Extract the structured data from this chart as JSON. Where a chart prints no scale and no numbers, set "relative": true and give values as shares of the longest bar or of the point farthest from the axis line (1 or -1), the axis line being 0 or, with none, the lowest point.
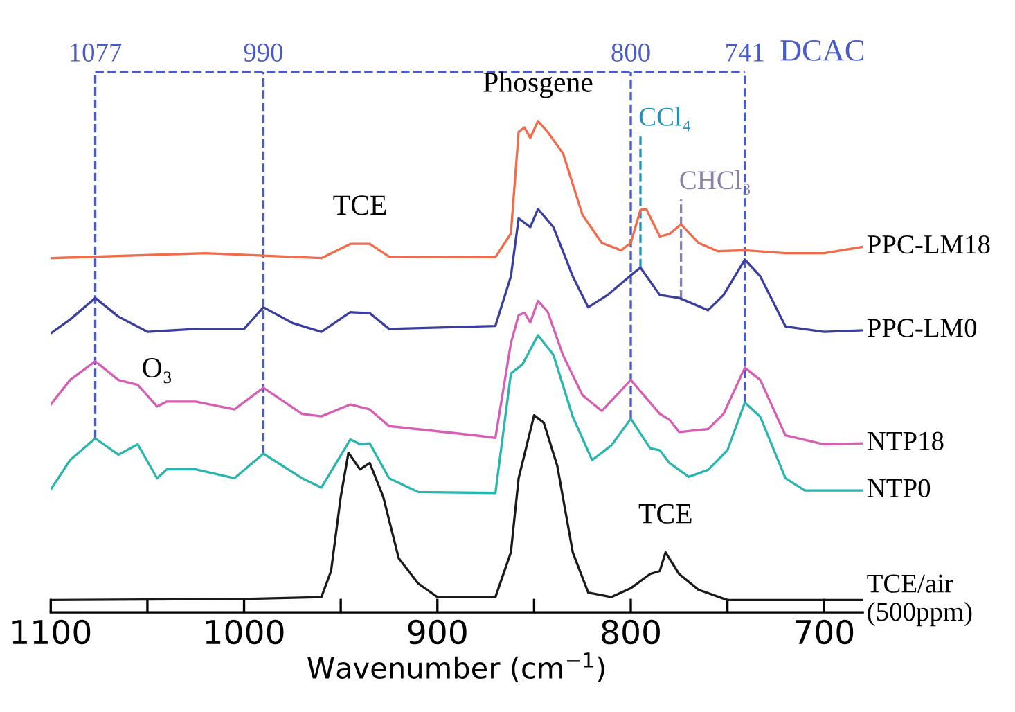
{
  "chart_data": {
    "type": "line",
    "relative": true,
    "xlabel": "Wavenumber (cm$^{−1}$)",
    "xlim": [
      1100,
      680
    ],
    "xticks": [
      1100,
      {
        "value": 1050,
        "label": null
      },
      1000,
      {
        "value": 950,
        "label": null
      },
      900,
      {
        "value": 850,
        "label": null
      },
      800,
      {
        "value": 750,
        "label": null
      },
      700
    ],
    "legend": false,
    "grid": false,
    "marker": "none",
    "line_style": "solid",
    "series": [
      {
        "name": "PPC-LM18",
        "color": "#f26b4a",
        "x": [
          1100,
          1020,
          960,
          945,
          935,
          925,
          870,
          862,
          858,
          855,
          852,
          848,
          843,
          835,
          825,
          815,
          805,
          800,
          795,
          792,
          785,
          780,
          774,
          765,
          755,
          741,
          720,
          700,
          680
        ],
        "values": [
          0.721,
          0.731,
          0.721,
          0.75,
          0.75,
          0.724,
          0.723,
          0.771,
          0.978,
          0.987,
          0.966,
          1.0,
          0.978,
          0.934,
          0.809,
          0.752,
          0.737,
          0.752,
          0.819,
          0.821,
          0.765,
          0.77,
          0.79,
          0.752,
          0.735,
          0.737,
          0.731,
          0.731,
          0.744
        ]
      },
      {
        "name": "PPC-LM0",
        "color": "#3a3f9e",
        "x": [
          1100,
          1090,
          1077,
          1065,
          1050,
          1025,
          1000,
          990,
          975,
          960,
          945,
          935,
          925,
          870,
          862,
          858,
          852,
          848,
          840,
          830,
          822,
          812,
          800,
          795,
          785,
          775,
          760,
          752,
          741,
          733,
          720,
          700,
          680
        ],
        "values": [
          0.568,
          0.596,
          0.64,
          0.602,
          0.571,
          0.577,
          0.577,
          0.621,
          0.589,
          0.571,
          0.611,
          0.609,
          0.577,
          0.583,
          0.684,
          0.802,
          0.784,
          0.821,
          0.784,
          0.684,
          0.621,
          0.646,
          0.686,
          0.702,
          0.646,
          0.64,
          0.615,
          0.646,
          0.718,
          0.684,
          0.582,
          0.571,
          0.574
        ]
      },
      {
        "name": "NTP18",
        "color": "#d65fb4",
        "x": [
          1100,
          1090,
          1077,
          1065,
          1055,
          1045,
          1040,
          1025,
          1005,
          990,
          970,
          960,
          945,
          935,
          925,
          880,
          870,
          862,
          858,
          855,
          852,
          848,
          843,
          835,
          825,
          815,
          800,
          785,
          780,
          775,
          760,
          752,
          741,
          733,
          720,
          700,
          680
        ],
        "values": [
          0.423,
          0.473,
          0.511,
          0.473,
          0.463,
          0.419,
          0.429,
          0.429,
          0.413,
          0.457,
          0.404,
          0.399,
          0.423,
          0.413,
          0.379,
          0.36,
          0.355,
          0.548,
          0.605,
          0.61,
          0.59,
          0.634,
          0.612,
          0.523,
          0.442,
          0.41,
          0.473,
          0.404,
          0.392,
          0.367,
          0.373,
          0.404,
          0.498,
          0.473,
          0.36,
          0.342,
          0.344
        ]
      },
      {
        "name": "NTP0",
        "color": "#2bb5ad",
        "x": [
          1100,
          1090,
          1077,
          1065,
          1055,
          1045,
          1040,
          1025,
          1005,
          990,
          970,
          960,
          945,
          940,
          935,
          925,
          910,
          870,
          862,
          856,
          848,
          840,
          830,
          820,
          810,
          800,
          790,
          785,
          780,
          770,
          760,
          750,
          741,
          733,
          720,
          710,
          680
        ],
        "values": [
          0.25,
          0.31,
          0.354,
          0.321,
          0.342,
          0.273,
          0.291,
          0.291,
          0.273,
          0.323,
          0.273,
          0.254,
          0.352,
          0.342,
          0.344,
          0.273,
          0.245,
          0.243,
          0.486,
          0.505,
          0.564,
          0.524,
          0.398,
          0.31,
          0.34,
          0.394,
          0.334,
          0.33,
          0.304,
          0.276,
          0.29,
          0.33,
          0.427,
          0.398,
          0.273,
          0.248,
          0.248
        ]
      },
      {
        "name": "TCE/air\n(500ppm)",
        "color": "#1a1a1a",
        "x": [
          1100,
          1000,
          960,
          955,
          950,
          946,
          940,
          935,
          928,
          920,
          910,
          900,
          870,
          862,
          858,
          850,
          845,
          838,
          830,
          822,
          810,
          800,
          790,
          785,
          782,
          775,
          765,
          750,
          680
        ],
        "values": [
          0.025,
          0.027,
          0.031,
          0.084,
          0.235,
          0.325,
          0.291,
          0.304,
          0.235,
          0.11,
          0.059,
          0.031,
          0.031,
          0.122,
          0.273,
          0.401,
          0.386,
          0.298,
          0.122,
          0.04,
          0.031,
          0.049,
          0.078,
          0.084,
          0.122,
          0.078,
          0.046,
          0.025,
          0.025
        ]
      }
    ],
    "ref_lines": [
      {
        "axis": "x",
        "value": 1077,
        "label": "1077",
        "color": "#4a5bc8",
        "line_style": "dashed"
      },
      {
        "axis": "x",
        "value": 990,
        "label": "990",
        "color": "#4a5bc8",
        "line_style": "dashed"
      },
      {
        "axis": "x",
        "value": 800,
        "label": "800",
        "color": "#4a5bc8",
        "line_style": "dashed"
      },
      {
        "axis": "x",
        "value": 741,
        "label": "741",
        "color": "#4a5bc8",
        "line_style": "dashed"
      },
      {
        "axis": "x",
        "value": 795,
        "label": "CCl₄",
        "color": "#2a8fb5",
        "line_style": "dashed"
      },
      {
        "axis": "x",
        "value": 774,
        "label": "CHCl₃",
        "color": "#8a80a8",
        "line_style": "dashed"
      },
      {
        "axis": "y",
        "value": 1.1,
        "label": "DCAC",
        "color": "#4a5bc8",
        "line_style": "dashed"
      }
    ],
    "annotations": [
      {
        "text": "Phosgene",
        "x": 848,
        "y": 1.0
      },
      {
        "text": "TCE",
        "x": 940,
        "y": 0.75
      },
      {
        "text": "O₃",
        "x": 1045,
        "y": 0.419
      },
      {
        "text": "TCE",
        "x": 782,
        "y": 0.122
      }
    ]
  }
}
